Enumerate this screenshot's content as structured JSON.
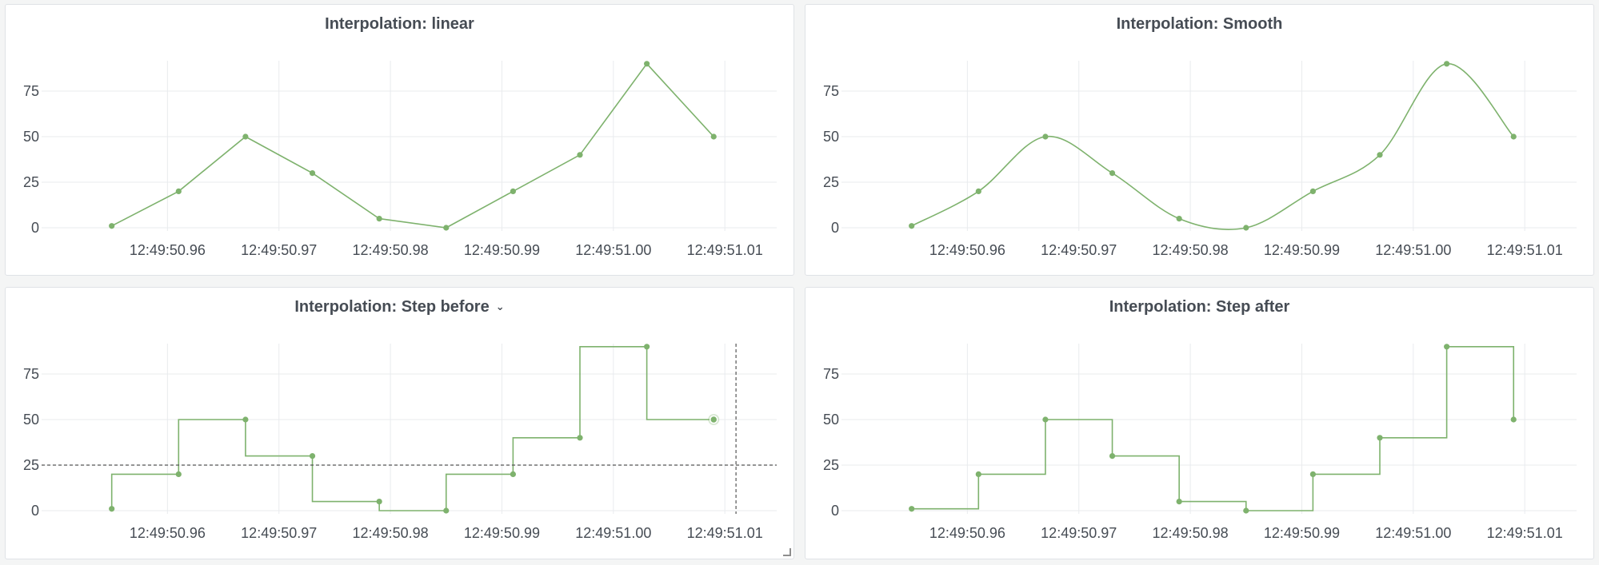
{
  "accent_color": "#7eb26d",
  "chart_data": [
    {
      "type": "line",
      "title": "Interpolation: linear",
      "interpolation": "linear",
      "x": [
        "12:49:50.955",
        "12:49:50.961",
        "12:49:50.967",
        "12:49:50.973",
        "12:49:50.979",
        "12:49:50.985",
        "12:49:50.991",
        "12:49:50.997",
        "12:49:51.003",
        "12:49:51.009"
      ],
      "series": [
        {
          "values": [
            1,
            20,
            50,
            30,
            5,
            0,
            20,
            40,
            90,
            50
          ]
        }
      ],
      "xticks": [
        "12:49:50.96",
        "12:49:50.97",
        "12:49:50.98",
        "12:49:50.99",
        "12:49:51.00",
        "12:49:51.01"
      ],
      "yticks": [
        "0",
        "25",
        "50",
        "75"
      ],
      "ylim": [
        0,
        100
      ],
      "grid": true,
      "has_menu": false
    },
    {
      "type": "line",
      "title": "Interpolation: Smooth",
      "interpolation": "smooth",
      "x": [
        "12:49:50.955",
        "12:49:50.961",
        "12:49:50.967",
        "12:49:50.973",
        "12:49:50.979",
        "12:49:50.985",
        "12:49:50.991",
        "12:49:50.997",
        "12:49:51.003",
        "12:49:51.009"
      ],
      "series": [
        {
          "values": [
            1,
            20,
            50,
            30,
            5,
            0,
            20,
            40,
            90,
            50
          ]
        }
      ],
      "xticks": [
        "12:49:50.96",
        "12:49:50.97",
        "12:49:50.98",
        "12:49:50.99",
        "12:49:51.00",
        "12:49:51.01"
      ],
      "yticks": [
        "0",
        "25",
        "50",
        "75"
      ],
      "ylim": [
        0,
        100
      ],
      "grid": true,
      "has_menu": false
    },
    {
      "type": "line",
      "title": "Interpolation: Step before",
      "interpolation": "step-before",
      "x": [
        "12:49:50.955",
        "12:49:50.961",
        "12:49:50.967",
        "12:49:50.973",
        "12:49:50.979",
        "12:49:50.985",
        "12:49:50.991",
        "12:49:50.997",
        "12:49:51.003",
        "12:49:51.009"
      ],
      "series": [
        {
          "values": [
            1,
            20,
            50,
            30,
            5,
            0,
            20,
            40,
            90,
            50
          ]
        }
      ],
      "xticks": [
        "12:49:50.96",
        "12:49:50.97",
        "12:49:50.98",
        "12:49:50.99",
        "12:49:51.00",
        "12:49:51.01"
      ],
      "yticks": [
        "0",
        "25",
        "50",
        "75"
      ],
      "ylim": [
        0,
        100
      ],
      "grid": true,
      "has_menu": true,
      "crosshair": {
        "x": "12:49:51.011",
        "y": 25
      },
      "hover_point_index": 9
    },
    {
      "type": "line",
      "title": "Interpolation: Step after",
      "interpolation": "step-after",
      "x": [
        "12:49:50.955",
        "12:49:50.961",
        "12:49:50.967",
        "12:49:50.973",
        "12:49:50.979",
        "12:49:50.985",
        "12:49:50.991",
        "12:49:50.997",
        "12:49:51.003",
        "12:49:51.009"
      ],
      "series": [
        {
          "values": [
            1,
            20,
            50,
            30,
            5,
            0,
            20,
            40,
            90,
            50
          ]
        }
      ],
      "xticks": [
        "12:49:50.96",
        "12:49:50.97",
        "12:49:50.98",
        "12:49:50.99",
        "12:49:51.00",
        "12:49:51.01"
      ],
      "yticks": [
        "0",
        "25",
        "50",
        "75"
      ],
      "ylim": [
        0,
        100
      ],
      "grid": true,
      "has_menu": false
    }
  ]
}
